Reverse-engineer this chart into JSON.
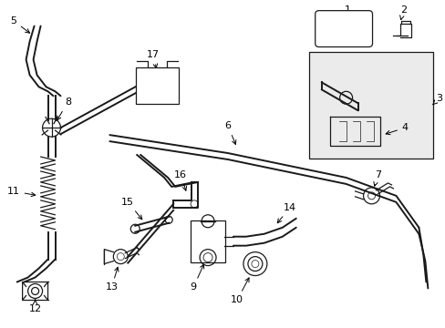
{
  "bg_color": "#ffffff",
  "line_color": "#1a1a1a",
  "fig_width": 4.89,
  "fig_height": 3.6,
  "dpi": 100,
  "label_fs": 8,
  "arrow_lw": 0.7
}
